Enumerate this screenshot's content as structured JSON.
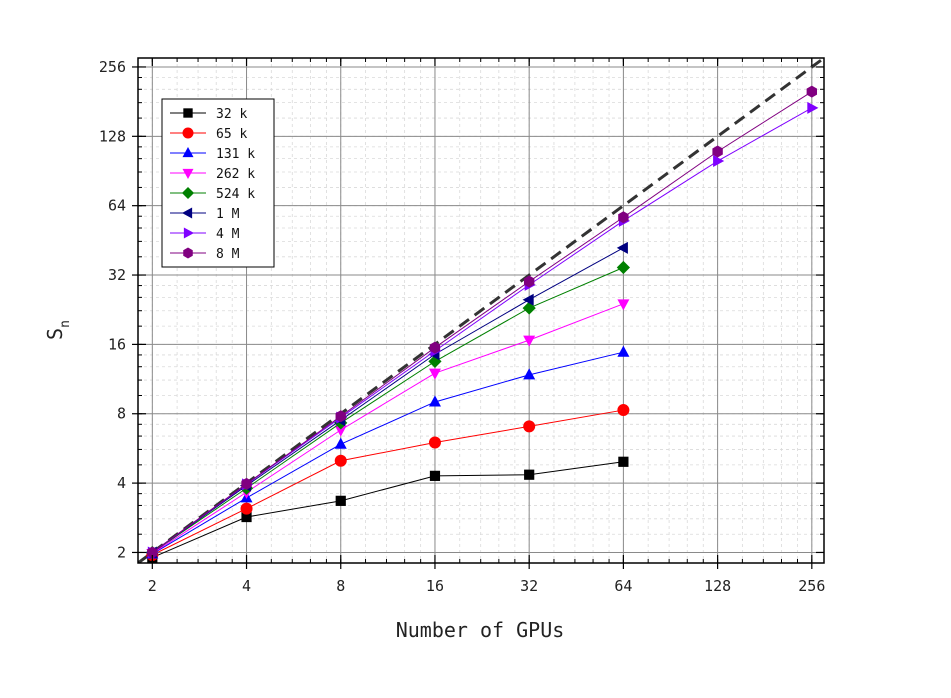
{
  "chart_data": {
    "type": "line",
    "xlabel": "Number of GPUs",
    "ylabel": "S",
    "ylabel_sub": "n",
    "x_scale": "log2",
    "y_scale": "log2",
    "xlim": [
      1.8,
      280
    ],
    "ylim": [
      1.8,
      280
    ],
    "x_ticks": [
      2,
      4,
      8,
      16,
      32,
      64,
      128,
      256
    ],
    "x_tick_labels": [
      "2",
      "4",
      "8",
      "16",
      "32",
      "64",
      "128",
      "256"
    ],
    "y_ticks": [
      2,
      4,
      8,
      16,
      32,
      64,
      128,
      256
    ],
    "y_tick_labels": [
      "2",
      "4",
      "8",
      "16",
      "32",
      "64",
      "128",
      "256"
    ],
    "grid": true,
    "legend_position": "top-left",
    "ideal_line": {
      "style": "dashed",
      "color": "#333333"
    },
    "series": [
      {
        "name": "32 k",
        "color": "#000000",
        "marker": "square",
        "x": [
          2,
          4,
          8,
          16,
          32,
          64
        ],
        "y": [
          1.9,
          2.85,
          3.35,
          4.3,
          4.35,
          4.95
        ]
      },
      {
        "name": "65 k",
        "color": "#ff0000",
        "marker": "circle",
        "x": [
          2,
          4,
          8,
          16,
          32,
          64
        ],
        "y": [
          1.95,
          3.1,
          5.0,
          6.0,
          7.05,
          8.3
        ]
      },
      {
        "name": "131 k",
        "color": "#0000ff",
        "marker": "triangle-up",
        "x": [
          2,
          4,
          8,
          16,
          32,
          64
        ],
        "y": [
          1.97,
          3.45,
          5.9,
          9.0,
          11.8,
          14.8
        ]
      },
      {
        "name": "262 k",
        "color": "#ff00ff",
        "marker": "triangle-down",
        "x": [
          2,
          4,
          8,
          16,
          32,
          64
        ],
        "y": [
          1.98,
          3.65,
          6.8,
          12.0,
          16.7,
          24.0
        ]
      },
      {
        "name": "524 k",
        "color": "#008000",
        "marker": "diamond",
        "x": [
          2,
          4,
          8,
          16,
          32,
          64
        ],
        "y": [
          2.0,
          3.8,
          7.3,
          13.5,
          23.0,
          34.5
        ]
      },
      {
        "name": "1 M",
        "color": "#000080",
        "marker": "triangle-left",
        "x": [
          2,
          4,
          8,
          16,
          32,
          64
        ],
        "y": [
          2.0,
          3.9,
          7.5,
          14.5,
          25.0,
          42.0
        ]
      },
      {
        "name": "4 M",
        "color": "#8000ff",
        "marker": "triangle-right",
        "x": [
          2,
          4,
          8,
          16,
          32,
          64,
          128,
          256
        ],
        "y": [
          2.0,
          3.95,
          7.7,
          15.0,
          29.0,
          55.0,
          100.0,
          170.0
        ]
      },
      {
        "name": "8 M",
        "color": "#800080",
        "marker": "hexagon",
        "x": [
          2,
          4,
          8,
          16,
          32,
          64,
          128,
          256
        ],
        "y": [
          2.0,
          3.97,
          7.8,
          15.5,
          30.0,
          57.0,
          110.0,
          200.0
        ]
      }
    ]
  }
}
